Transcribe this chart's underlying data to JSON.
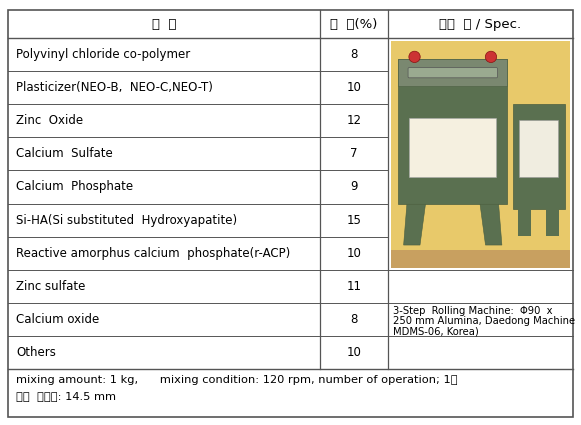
{
  "title_row": [
    "성  분",
    "함  량(%)",
    "설비  명 / Spec."
  ],
  "rows": [
    [
      "Polyvinyl chloride co-polymer",
      "8"
    ],
    [
      "Plasticizer(NEO-B,  NEO-C,NEO-T)",
      "10"
    ],
    [
      "Zinc  Oxide",
      "12"
    ],
    [
      "Calcium  Sulfate",
      "7"
    ],
    [
      "Calcium  Phosphate",
      "9"
    ],
    [
      "Si-HA(Si substituted  Hydroxyapatite)",
      "15"
    ],
    [
      "Reactive amorphus calcium  phosphate(r-ACP)",
      "10"
    ],
    [
      "Zinc sulfate",
      "11"
    ],
    [
      "Calcium oxide",
      "8"
    ],
    [
      "Others",
      "10"
    ]
  ],
  "footer_line1": "mixing amount: 1 kg,      mixing condition: 120 rpm, number of operation; 1회",
  "footer_line2": "평균  점주도: 14.5 mm",
  "spec_text": "3-Step  Rolling Machine:  Φ90  x\n250 mm Alumina, Daedong Machine\nMDMS-06, Korea)",
  "bg_yellow": "#e8c96a",
  "machine_green": "#5a7050",
  "machine_dark": "#4a5e40",
  "machine_top_gray": "#7a8870",
  "white": "#f0f0ee",
  "border_color": "#555555",
  "font_size": 8.5,
  "header_font_size": 9.5
}
